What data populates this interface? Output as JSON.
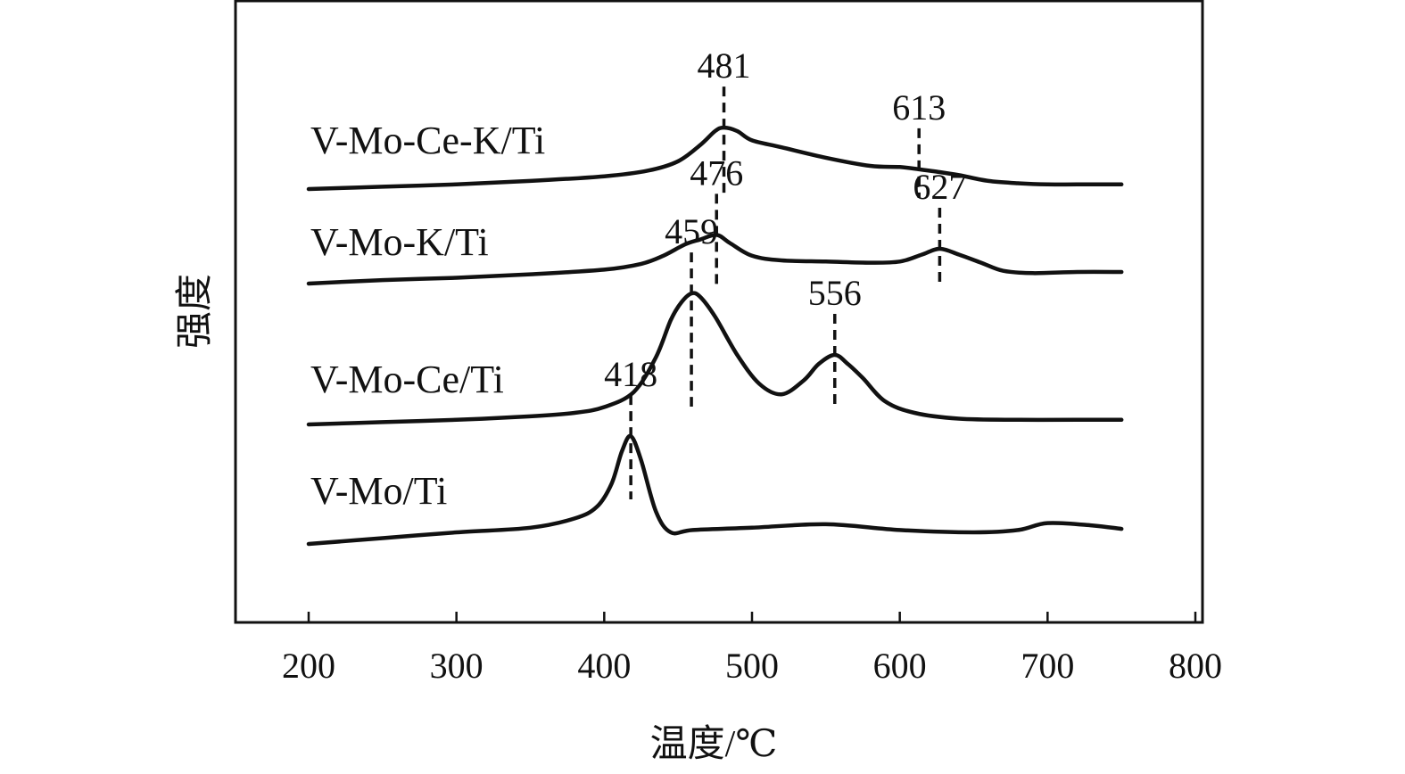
{
  "chart_data": {
    "type": "line",
    "xlabel": "温度/℃",
    "ylabel": "强度",
    "xlim": [
      150,
      800
    ],
    "x_ticks": [
      200,
      300,
      400,
      500,
      600,
      700,
      800
    ],
    "y_ticks_shown": false,
    "grid": false,
    "legend": "none",
    "series": [
      {
        "name": "V-Mo-Ce-K/Ti",
        "x": [
          200,
          250,
          300,
          350,
          400,
          430,
          450,
          465,
          475,
          481,
          490,
          500,
          520,
          550,
          580,
          600,
          613,
          625,
          640,
          660,
          680,
          700,
          720,
          750
        ],
        "y": [
          0.0,
          0.02,
          0.04,
          0.07,
          0.11,
          0.16,
          0.24,
          0.38,
          0.5,
          0.53,
          0.5,
          0.42,
          0.36,
          0.27,
          0.2,
          0.19,
          0.17,
          0.15,
          0.12,
          0.07,
          0.05,
          0.04,
          0.04,
          0.04
        ],
        "peaks": [
          481,
          613
        ]
      },
      {
        "name": "V-Mo-K/Ti",
        "x": [
          200,
          250,
          300,
          350,
          400,
          425,
          440,
          455,
          465,
          476,
          485,
          500,
          520,
          550,
          580,
          600,
          615,
          627,
          640,
          655,
          670,
          690,
          720,
          750
        ],
        "y": [
          0.0,
          0.03,
          0.05,
          0.08,
          0.12,
          0.17,
          0.24,
          0.34,
          0.38,
          0.42,
          0.35,
          0.24,
          0.2,
          0.19,
          0.18,
          0.19,
          0.25,
          0.3,
          0.25,
          0.18,
          0.11,
          0.09,
          0.1,
          0.1
        ],
        "peaks": [
          476,
          627
        ]
      },
      {
        "name": "V-Mo-Ce/Ti",
        "x": [
          200,
          250,
          300,
          350,
          380,
          400,
          420,
          435,
          445,
          452,
          459,
          465,
          475,
          490,
          505,
          520,
          535,
          545,
          556,
          565,
          575,
          590,
          610,
          640,
          680,
          720,
          750
        ],
        "y": [
          0.0,
          0.02,
          0.04,
          0.07,
          0.1,
          0.15,
          0.28,
          0.58,
          0.9,
          1.05,
          1.13,
          1.1,
          0.93,
          0.6,
          0.35,
          0.26,
          0.38,
          0.52,
          0.6,
          0.52,
          0.4,
          0.2,
          0.1,
          0.05,
          0.04,
          0.04,
          0.04
        ],
        "peaks": [
          459,
          556
        ]
      },
      {
        "name": "V-Mo/Ti",
        "x": [
          200,
          250,
          300,
          350,
          380,
          395,
          405,
          412,
          418,
          425,
          435,
          445,
          460,
          500,
          550,
          600,
          650,
          680,
          700,
          730,
          750
        ],
        "y": [
          0.0,
          0.05,
          0.1,
          0.14,
          0.22,
          0.32,
          0.52,
          0.8,
          0.93,
          0.72,
          0.28,
          0.1,
          0.12,
          0.14,
          0.17,
          0.12,
          0.1,
          0.12,
          0.18,
          0.16,
          0.13
        ],
        "peaks": [
          418
        ]
      }
    ]
  }
}
